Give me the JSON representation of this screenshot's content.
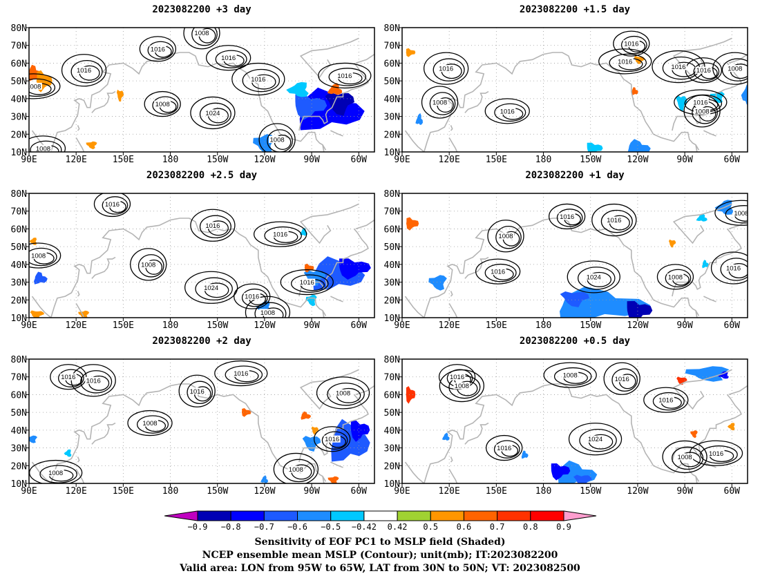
{
  "panels": [
    {
      "id": "p1",
      "title": "2023082200 +3 day",
      "contours": [
        {
          "text": "1016",
          "lon": 172,
          "lat": 68
        },
        {
          "text": "1016",
          "lon": 125,
          "lat": 56
        },
        {
          "text": "1008",
          "lon": 93,
          "lat": 47
        },
        {
          "text": "1008",
          "lon": 200,
          "lat": 77
        },
        {
          "text": "1016",
          "lon": 217,
          "lat": 63
        },
        {
          "text": "1016",
          "lon": 236,
          "lat": 51
        },
        {
          "text": "1008",
          "lon": 175,
          "lat": 37
        },
        {
          "text": "1024",
          "lon": 207,
          "lat": 32
        },
        {
          "text": "1016",
          "lon": 291,
          "lat": 53
        },
        {
          "text": "1008",
          "lon": 248,
          "lat": 17
        },
        {
          "text": "1008",
          "lon": 99,
          "lat": 12
        }
      ],
      "blobs": [
        {
          "lon": 280,
          "lat": 33,
          "rx": 20,
          "ry": 10,
          "v": -0.8
        },
        {
          "lon": 268,
          "lat": 36,
          "rx": 10,
          "ry": 6,
          "v": -0.7
        },
        {
          "lon": 288,
          "lat": 38,
          "rx": 8,
          "ry": 6,
          "v": -0.9
        },
        {
          "lon": 240,
          "lat": 15,
          "rx": 6,
          "ry": 5,
          "v": -0.6
        },
        {
          "lon": 262,
          "lat": 45,
          "rx": 6,
          "ry": 4,
          "v": -0.5
        },
        {
          "lon": 285,
          "lat": 45,
          "rx": 4,
          "ry": 3,
          "v": 0.6
        },
        {
          "lon": 93,
          "lat": 54,
          "rx": 4,
          "ry": 4,
          "v": 0.6
        },
        {
          "lon": 99,
          "lat": 50,
          "rx": 5,
          "ry": 5,
          "v": 0.5
        },
        {
          "lon": 148,
          "lat": 42,
          "rx": 2,
          "ry": 3,
          "v": 0.5
        },
        {
          "lon": 130,
          "lat": 14,
          "rx": 3,
          "ry": 2,
          "v": 0.5
        }
      ]
    },
    {
      "id": "p2",
      "title": "2023082200 +1.5 day",
      "contours": [
        {
          "text": "1016",
          "lon": 236,
          "lat": 71
        },
        {
          "text": "1016",
          "lon": 118,
          "lat": 57
        },
        {
          "text": "1016",
          "lon": 232,
          "lat": 61
        },
        {
          "text": "1008",
          "lon": 114,
          "lat": 38
        },
        {
          "text": "1016",
          "lon": 157,
          "lat": 33
        },
        {
          "text": "1016",
          "lon": 266,
          "lat": 58
        },
        {
          "text": "1016",
          "lon": 282,
          "lat": 56
        },
        {
          "text": "1008",
          "lon": 302,
          "lat": 57
        },
        {
          "text": "1016",
          "lon": 280,
          "lat": 38
        },
        {
          "text": "1008",
          "lon": 281,
          "lat": 33
        }
      ],
      "blobs": [
        {
          "lon": 240,
          "lat": 12,
          "rx": 7,
          "ry": 4,
          "v": -0.6
        },
        {
          "lon": 212,
          "lat": 12,
          "rx": 5,
          "ry": 3,
          "v": -0.5
        },
        {
          "lon": 268,
          "lat": 38,
          "rx": 3,
          "ry": 4,
          "v": -0.5
        },
        {
          "lon": 291,
          "lat": 41,
          "rx": 4,
          "ry": 3,
          "v": -0.5
        },
        {
          "lon": 310,
          "lat": 42,
          "rx": 3,
          "ry": 6,
          "v": -0.6
        },
        {
          "lon": 101,
          "lat": 28,
          "rx": 2,
          "ry": 3,
          "v": -0.6
        },
        {
          "lon": 238,
          "lat": 44,
          "rx": 2,
          "ry": 2,
          "v": 0.6
        },
        {
          "lon": 95,
          "lat": 66,
          "rx": 3,
          "ry": 2,
          "v": 0.5
        },
        {
          "lon": 241,
          "lat": 62,
          "rx": 3,
          "ry": 2,
          "v": 0.5
        }
      ]
    },
    {
      "id": "p3",
      "title": "2023082200 +2.5 day",
      "contours": [
        {
          "text": "1016",
          "lon": 143,
          "lat": 74
        },
        {
          "text": "1016",
          "lon": 207,
          "lat": 62
        },
        {
          "text": "1016",
          "lon": 250,
          "lat": 57
        },
        {
          "text": "1008",
          "lon": 166,
          "lat": 40
        },
        {
          "text": "1008",
          "lon": 96,
          "lat": 45
        },
        {
          "text": "1024",
          "lon": 206,
          "lat": 27
        },
        {
          "text": "1016",
          "lon": 232,
          "lat": 22
        },
        {
          "text": "1008",
          "lon": 242,
          "lat": 13
        },
        {
          "text": "1016",
          "lon": 267,
          "lat": 30
        }
      ],
      "blobs": [
        {
          "lon": 285,
          "lat": 34,
          "rx": 16,
          "ry": 8,
          "v": -0.7
        },
        {
          "lon": 296,
          "lat": 38,
          "rx": 10,
          "ry": 5,
          "v": -0.8
        },
        {
          "lon": 272,
          "lat": 33,
          "rx": 6,
          "ry": 4,
          "v": -0.6
        },
        {
          "lon": 270,
          "lat": 20,
          "rx": 3,
          "ry": 3,
          "v": -0.5
        },
        {
          "lon": 240,
          "lat": 16,
          "rx": 4,
          "ry": 3,
          "v": -0.6
        },
        {
          "lon": 265,
          "lat": 58,
          "rx": 2,
          "ry": 2,
          "v": -0.5
        },
        {
          "lon": 97,
          "lat": 32,
          "rx": 4,
          "ry": 3,
          "v": -0.7
        },
        {
          "lon": 268,
          "lat": 38,
          "rx": 3,
          "ry": 2,
          "v": 0.6
        },
        {
          "lon": 95,
          "lat": 12,
          "rx": 4,
          "ry": 2,
          "v": 0.5
        },
        {
          "lon": 125,
          "lat": 12,
          "rx": 3,
          "ry": 2,
          "v": 0.5
        },
        {
          "lon": 93,
          "lat": 53,
          "rx": 2,
          "ry": 2,
          "v": 0.5
        }
      ]
    },
    {
      "id": "p4",
      "title": "2023082200 +1 day",
      "contours": [
        {
          "text": "1016",
          "lon": 195,
          "lat": 67
        },
        {
          "text": "1016",
          "lon": 225,
          "lat": 65
        },
        {
          "text": "1008",
          "lon": 306,
          "lat": 69
        },
        {
          "text": "1008",
          "lon": 156,
          "lat": 56
        },
        {
          "text": "1016",
          "lon": 151,
          "lat": 36
        },
        {
          "text": "1024",
          "lon": 212,
          "lat": 33
        },
        {
          "text": "1008",
          "lon": 264,
          "lat": 33
        },
        {
          "text": "1016",
          "lon": 301,
          "lat": 38
        }
      ],
      "blobs": [
        {
          "lon": 215,
          "lat": 17,
          "rx": 28,
          "ry": 8,
          "v": -0.6
        },
        {
          "lon": 240,
          "lat": 14,
          "rx": 8,
          "ry": 5,
          "v": -0.9
        },
        {
          "lon": 200,
          "lat": 21,
          "rx": 8,
          "ry": 4,
          "v": -0.7
        },
        {
          "lon": 113,
          "lat": 30,
          "rx": 5,
          "ry": 4,
          "v": -0.6
        },
        {
          "lon": 296,
          "lat": 72,
          "rx": 5,
          "ry": 4,
          "v": -0.6
        },
        {
          "lon": 281,
          "lat": 66,
          "rx": 3,
          "ry": 2,
          "v": -0.5
        },
        {
          "lon": 283,
          "lat": 40,
          "rx": 2,
          "ry": 2,
          "v": -0.5
        },
        {
          "lon": 96,
          "lat": 63,
          "rx": 4,
          "ry": 3,
          "v": 0.6
        },
        {
          "lon": 262,
          "lat": 52,
          "rx": 2,
          "ry": 2,
          "v": 0.5
        }
      ]
    },
    {
      "id": "p5",
      "title": "2023082200 +2 day",
      "contours": [
        {
          "text": "1016",
          "lon": 115,
          "lat": 70
        },
        {
          "text": "1016",
          "lon": 131,
          "lat": 68
        },
        {
          "text": "1016",
          "lon": 225,
          "lat": 72
        },
        {
          "text": "1016",
          "lon": 197,
          "lat": 62
        },
        {
          "text": "1008",
          "lon": 167,
          "lat": 44
        },
        {
          "text": "1008",
          "lon": 290,
          "lat": 61
        },
        {
          "text": "1016",
          "lon": 283,
          "lat": 35
        },
        {
          "text": "1008",
          "lon": 260,
          "lat": 18
        },
        {
          "text": "1008",
          "lon": 107,
          "lat": 16
        }
      ],
      "blobs": [
        {
          "lon": 293,
          "lat": 33,
          "rx": 12,
          "ry": 10,
          "v": -0.7
        },
        {
          "lon": 300,
          "lat": 40,
          "rx": 6,
          "ry": 5,
          "v": -0.8
        },
        {
          "lon": 270,
          "lat": 33,
          "rx": 5,
          "ry": 4,
          "v": -0.6
        },
        {
          "lon": 92,
          "lat": 35,
          "rx": 3,
          "ry": 2,
          "v": -0.6
        },
        {
          "lon": 115,
          "lat": 27,
          "rx": 2,
          "ry": 2,
          "v": -0.5
        },
        {
          "lon": 240,
          "lat": 12,
          "rx": 2,
          "ry": 2,
          "v": -0.6
        },
        {
          "lon": 266,
          "lat": 48,
          "rx": 3,
          "ry": 2,
          "v": 0.6
        },
        {
          "lon": 228,
          "lat": 50,
          "rx": 3,
          "ry": 2,
          "v": 0.6
        },
        {
          "lon": 272,
          "lat": 40,
          "rx": 2,
          "ry": 2,
          "v": 0.5
        },
        {
          "lon": 284,
          "lat": 12,
          "rx": 3,
          "ry": 2,
          "v": 0.6
        }
      ]
    },
    {
      "id": "p6",
      "title": "2023082200 +0.5 day",
      "contours": [
        {
          "text": "1016",
          "lon": 125,
          "lat": 70
        },
        {
          "text": "1008",
          "lon": 128,
          "lat": 65
        },
        {
          "text": "1008",
          "lon": 197,
          "lat": 71
        },
        {
          "text": "1016",
          "lon": 230,
          "lat": 69
        },
        {
          "text": "1016",
          "lon": 258,
          "lat": 57
        },
        {
          "text": "1024",
          "lon": 213,
          "lat": 35
        },
        {
          "text": "1016",
          "lon": 155,
          "lat": 30
        },
        {
          "text": "1008",
          "lon": 270,
          "lat": 25
        },
        {
          "text": "1016",
          "lon": 290,
          "lat": 27
        }
      ],
      "blobs": [
        {
          "lon": 200,
          "lat": 15,
          "rx": 12,
          "ry": 6,
          "v": -0.6
        },
        {
          "lon": 190,
          "lat": 17,
          "rx": 6,
          "ry": 4,
          "v": -0.8
        },
        {
          "lon": 205,
          "lat": 12,
          "rx": 5,
          "ry": 3,
          "v": -0.7
        },
        {
          "lon": 285,
          "lat": 72,
          "rx": 12,
          "ry": 4,
          "v": -0.6
        },
        {
          "lon": 295,
          "lat": 71,
          "rx": 3,
          "ry": 2,
          "v": -0.8
        },
        {
          "lon": 118,
          "lat": 36,
          "rx": 2,
          "ry": 2,
          "v": -0.6
        },
        {
          "lon": 168,
          "lat": 26,
          "rx": 2,
          "ry": 2,
          "v": -0.6
        },
        {
          "lon": 95,
          "lat": 60,
          "rx": 3,
          "ry": 4,
          "v": 0.7
        },
        {
          "lon": 268,
          "lat": 68,
          "rx": 3,
          "ry": 2,
          "v": 0.7
        },
        {
          "lon": 276,
          "lat": 38,
          "rx": 2,
          "ry": 2,
          "v": 0.6
        },
        {
          "lon": 300,
          "lat": 42,
          "rx": 2,
          "ry": 2,
          "v": 0.5
        }
      ]
    }
  ],
  "map": {
    "lon_min": 90,
    "lon_max": 310,
    "lat_min": 10,
    "lat_max": 80,
    "x_ticks": [
      {
        "lon": 90,
        "label": "90E"
      },
      {
        "lon": 120,
        "label": "120E"
      },
      {
        "lon": 150,
        "label": "150E"
      },
      {
        "lon": 180,
        "label": "180"
      },
      {
        "lon": 210,
        "label": "150W"
      },
      {
        "lon": 240,
        "label": "120W"
      },
      {
        "lon": 270,
        "label": "90W"
      },
      {
        "lon": 300,
        "label": "60W"
      }
    ],
    "y_ticks": [
      {
        "lat": 10,
        "label": "10N"
      },
      {
        "lat": 20,
        "label": "20N"
      },
      {
        "lat": 30,
        "label": "30N"
      },
      {
        "lat": 40,
        "label": "40N"
      },
      {
        "lat": 50,
        "label": "50N"
      },
      {
        "lat": 60,
        "label": "60N"
      },
      {
        "lat": 70,
        "label": "70N"
      },
      {
        "lat": 80,
        "label": "80N"
      }
    ]
  },
  "colorbar": {
    "labels": [
      "−0.9",
      "−0.8",
      "−0.7",
      "−0.6",
      "−0.5",
      "−0.42",
      "0.42",
      "0.5",
      "0.6",
      "0.7",
      "0.8",
      "0.9"
    ],
    "colors": [
      "#c000c0",
      "#0000b4",
      "#0000ff",
      "#1e5aff",
      "#1e8cff",
      "#00c8ff",
      "#ffffff",
      "#a0d232",
      "#ff9600",
      "#ff6400",
      "#ff3200",
      "#ff0000",
      "#ff9ecf"
    ]
  },
  "captions": [
    "Sensitivity of EOF PC1 to MSLP field (Shaded)",
    "NCEP ensemble mean MSLP (Contour); unit(mb); IT:2023082200",
    "Valid area: LON from 95W to 65W, LAT from 30N to 50N; VT: 2023082500"
  ]
}
